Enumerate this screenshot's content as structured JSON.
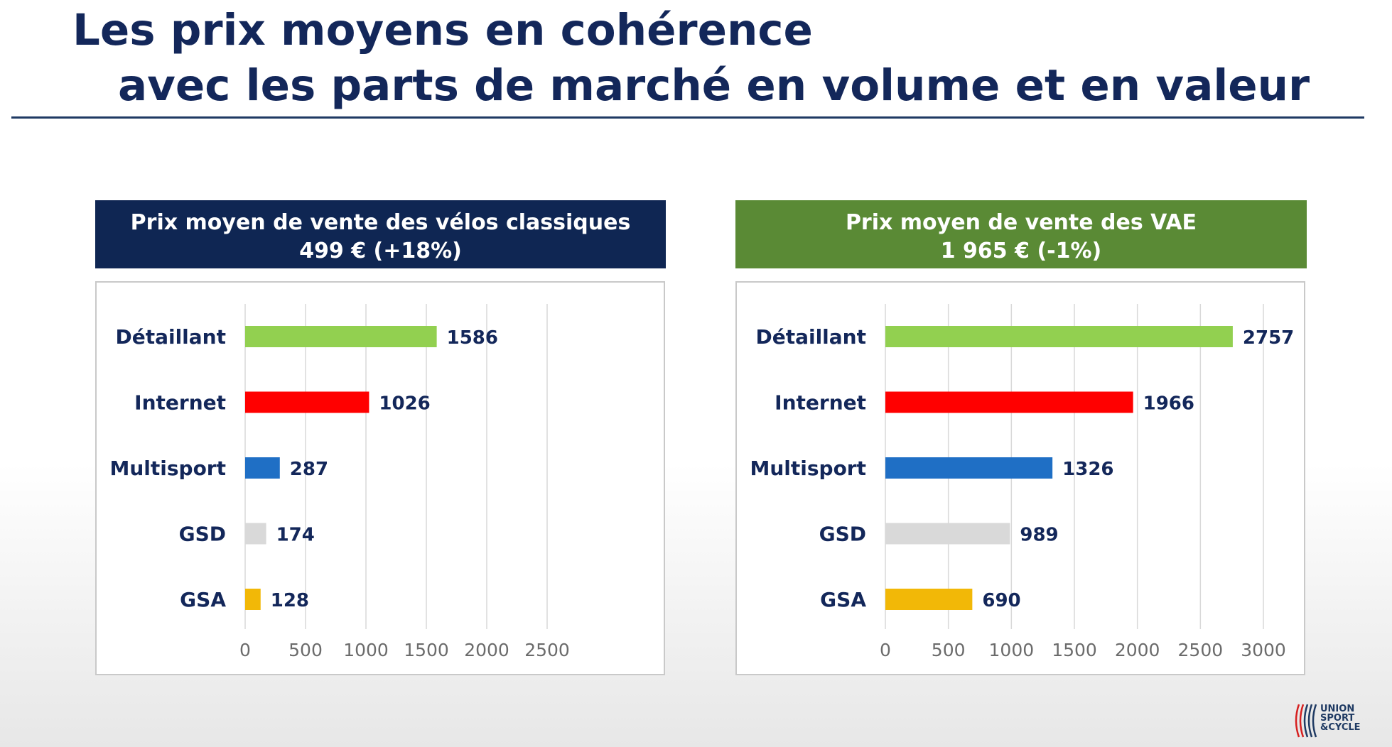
{
  "slide": {
    "title_line1": "Les prix moyens en cohérence",
    "title_line2": "avec les parts de marché en volume et en valeur"
  },
  "panels": [
    {
      "header_line1": "Prix moyen de vente des vélos classiques",
      "header_line2": "499 € (+18%)",
      "color": "#0f2653"
    },
    {
      "header_line1": "Prix moyen de vente des VAE",
      "header_line2": "1 965 € (-1%)",
      "color": "#5a8a35"
    }
  ],
  "logo": {
    "line1": "UNION",
    "line2": "SPORT",
    "line3": "&CYCLE"
  },
  "chart_data": [
    {
      "type": "bar",
      "orientation": "horizontal",
      "categories": [
        "Détaillant",
        "Internet",
        "Multisport",
        "GSD",
        "GSA"
      ],
      "values": [
        1586,
        1026,
        287,
        174,
        128
      ],
      "colors": [
        "#92d050",
        "#ff0000",
        "#1f6fc5",
        "#d9d9d9",
        "#f2b807"
      ],
      "xlim": [
        0,
        2500
      ],
      "ticks": [
        0,
        500,
        1000,
        1500,
        2000,
        2500
      ],
      "grid": true,
      "data_labels": true
    },
    {
      "type": "bar",
      "orientation": "horizontal",
      "categories": [
        "Détaillant",
        "Internet",
        "Multisport",
        "GSD",
        "GSA"
      ],
      "values": [
        2757,
        1966,
        1326,
        989,
        690
      ],
      "colors": [
        "#92d050",
        "#ff0000",
        "#1f6fc5",
        "#d9d9d9",
        "#f2b807"
      ],
      "xlim": [
        0,
        3000
      ],
      "ticks": [
        0,
        500,
        1000,
        1500,
        2000,
        2500,
        3000
      ],
      "grid": true,
      "data_labels": true
    }
  ]
}
